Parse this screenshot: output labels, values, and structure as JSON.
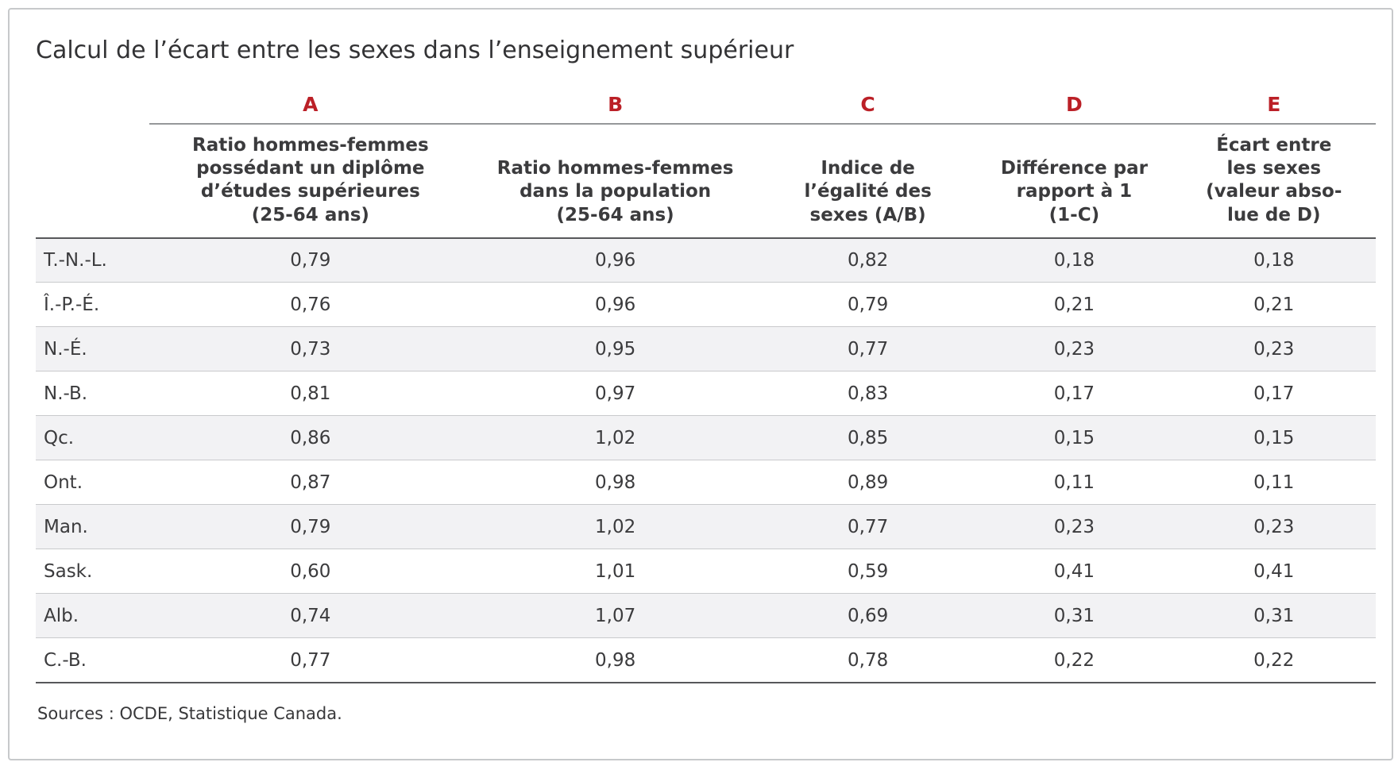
{
  "colors": {
    "accent_red": "#bb2027",
    "stripe": "#f2f2f4",
    "rule_dark": "#57585a",
    "rule_light": "#c9cacc",
    "card_border": "#c7c9cb"
  },
  "chart_data": {
    "type": "table",
    "title": "Calcul de l’écart entre les sexes dans l’enseignement supérieur",
    "column_letters": [
      "A",
      "B",
      "C",
      "D",
      "E"
    ],
    "column_headers": [
      "Ratio hommes-femmes\npossédant un diplôme\nd’études supérieures\n(25-64 ans)",
      "Ratio hommes-femmes\ndans la population\n(25-64 ans)",
      "Indice de\nl’égalité des\nsexes (A/B)",
      "Différence par\nrapport à 1\n(1-C)",
      "Écart entre\nles sexes\n(valeur abso-\nlue de D)"
    ],
    "rows": [
      {
        "label": "T.-N.-L.",
        "values": [
          "0,79",
          "0,96",
          "0,82",
          "0,18",
          "0,18"
        ]
      },
      {
        "label": "Î.-P.-É.",
        "values": [
          "0,76",
          "0,96",
          "0,79",
          "0,21",
          "0,21"
        ]
      },
      {
        "label": "N.-É.",
        "values": [
          "0,73",
          "0,95",
          "0,77",
          "0,23",
          "0,23"
        ]
      },
      {
        "label": "N.-B.",
        "values": [
          "0,81",
          "0,97",
          "0,83",
          "0,17",
          "0,17"
        ]
      },
      {
        "label": "Qc.",
        "values": [
          "0,86",
          "1,02",
          "0,85",
          "0,15",
          "0,15"
        ]
      },
      {
        "label": "Ont.",
        "values": [
          "0,87",
          "0,98",
          "0,89",
          "0,11",
          "0,11"
        ]
      },
      {
        "label": "Man.",
        "values": [
          "0,79",
          "1,02",
          "0,77",
          "0,23",
          "0,23"
        ]
      },
      {
        "label": "Sask.",
        "values": [
          "0,60",
          "1,01",
          "0,59",
          "0,41",
          "0,41"
        ]
      },
      {
        "label": "Alb.",
        "values": [
          "0,74",
          "1,07",
          "0,69",
          "0,31",
          "0,31"
        ]
      },
      {
        "label": "C.-B.",
        "values": [
          "0,77",
          "0,98",
          "0,78",
          "0,22",
          "0,22"
        ]
      }
    ],
    "source_note": "Sources : OCDE, Statistique Canada.",
    "legend_position": "none",
    "grid": "horizontal-rules"
  }
}
